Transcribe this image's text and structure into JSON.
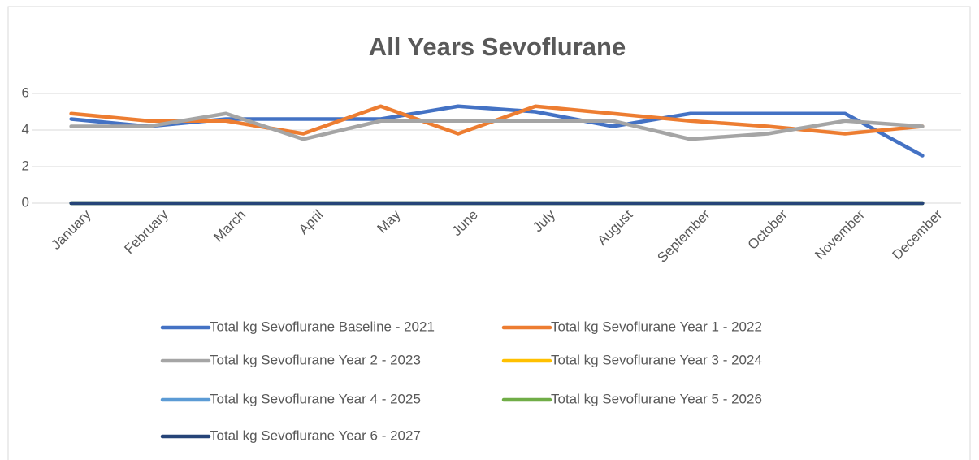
{
  "chart_data": {
    "type": "line",
    "title": "All Years Sevoflurane",
    "categories": [
      "January",
      "February",
      "March",
      "April",
      "May",
      "June",
      "July",
      "August",
      "September",
      "October",
      "November",
      "December"
    ],
    "series": [
      {
        "name": "Total kg Sevoflurane Baseline - 2021",
        "color": "#4472c4",
        "values": [
          4.6,
          4.2,
          4.6,
          4.6,
          4.6,
          5.3,
          5.0,
          4.2,
          4.9,
          4.9,
          4.9,
          2.6
        ]
      },
      {
        "name": "Total kg Sevoflurane Year 1 - 2022",
        "color": "#ed7d31",
        "values": [
          4.9,
          4.5,
          4.5,
          3.8,
          5.3,
          3.8,
          5.3,
          4.9,
          4.5,
          4.2,
          3.8,
          4.2
        ]
      },
      {
        "name": "Total kg Sevoflurane Year 2 - 2023",
        "color": "#a5a5a5",
        "values": [
          4.2,
          4.2,
          4.9,
          3.5,
          4.5,
          4.5,
          4.5,
          4.5,
          3.5,
          3.8,
          4.5,
          4.2
        ]
      },
      {
        "name": "Total kg Sevoflurane Year 3 - 2024",
        "color": "#ffc000",
        "values": [
          0,
          0,
          0,
          0,
          0,
          0,
          0,
          0,
          0,
          0,
          0,
          0
        ]
      },
      {
        "name": "Total kg Sevoflurane Year 4 - 2025",
        "color": "#5b9bd5",
        "values": [
          0,
          0,
          0,
          0,
          0,
          0,
          0,
          0,
          0,
          0,
          0,
          0
        ]
      },
      {
        "name": "Total kg Sevoflurane Year 5 - 2026",
        "color": "#70ad47",
        "values": [
          0,
          0,
          0,
          0,
          0,
          0,
          0,
          0,
          0,
          0,
          0,
          0
        ]
      },
      {
        "name": "Total kg Sevoflurane Year 6 - 2027",
        "color": "#264478",
        "values": [
          0,
          0,
          0,
          0,
          0,
          0,
          0,
          0,
          0,
          0,
          0,
          0
        ]
      }
    ],
    "ylim": [
      0,
      6
    ],
    "yticks": [
      0,
      2,
      4,
      6
    ],
    "grid": true,
    "legend": "bottom"
  }
}
